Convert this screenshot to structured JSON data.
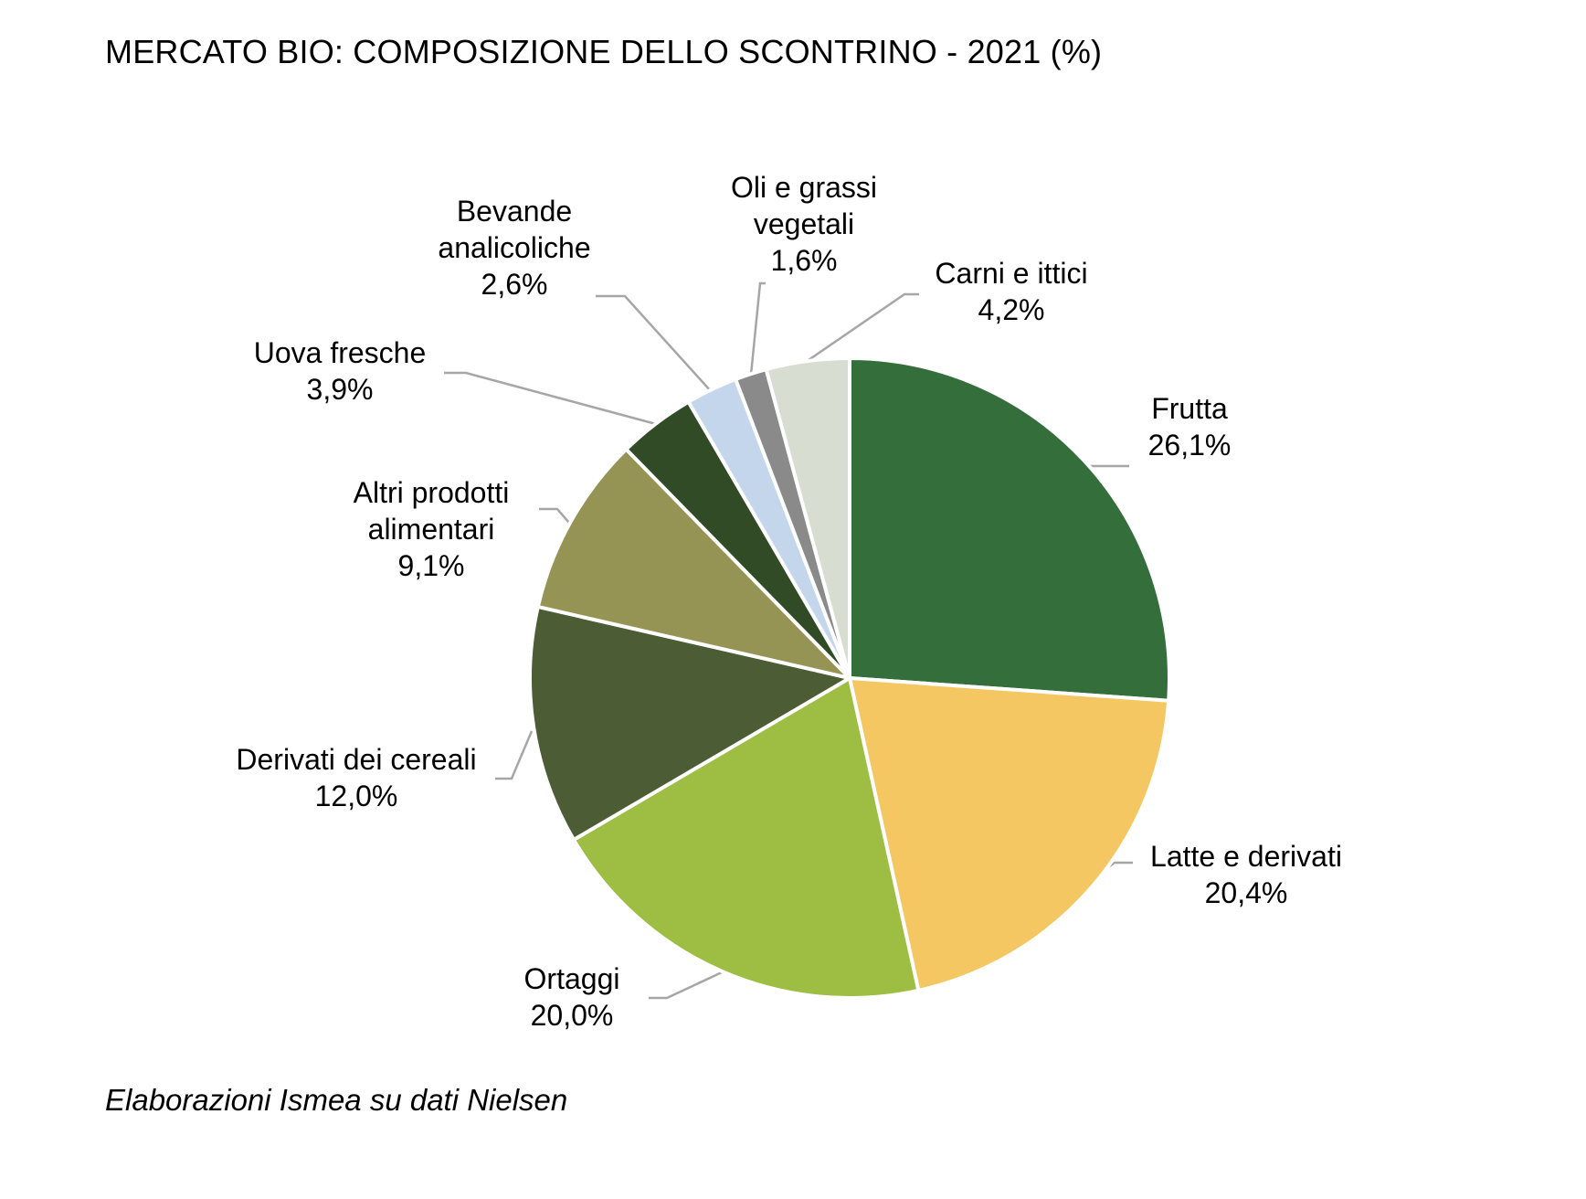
{
  "title": "MERCATO BIO: COMPOSIZIONE DELLO SCONTRINO - 2021 (%)",
  "source": "Elaborazioni Ismea su dati Nielsen",
  "chart_data": {
    "type": "pie",
    "title": "MERCATO BIO: COMPOSIZIONE DELLO SCONTRINO - 2021 (%)",
    "unit": "%",
    "start_angle_deg": 0,
    "direction": "clockwise",
    "slices": [
      {
        "label": "Frutta",
        "value": 26.1,
        "value_label": "26,1%",
        "color": "#346e3b"
      },
      {
        "label": "Latte e derivati",
        "value": 20.4,
        "value_label": "20,4%",
        "color": "#f4c762"
      },
      {
        "label": "Ortaggi",
        "value": 20.0,
        "value_label": "20,0%",
        "color": "#9dbd43"
      },
      {
        "label": "Derivati dei cereali",
        "value": 12.0,
        "value_label": "12,0%",
        "color": "#4c5c35"
      },
      {
        "label": "Altri prodotti alimentari",
        "value": 9.1,
        "value_label": "9,1%",
        "color": "#959454"
      },
      {
        "label": "Uova fresche",
        "value": 3.9,
        "value_label": "3,9%",
        "color": "#314b27"
      },
      {
        "label": "Bevande analicoliche",
        "value": 2.6,
        "value_label": "2,6%",
        "color": "#c3d6eb"
      },
      {
        "label": "Oli e grassi vegetali",
        "value": 1.6,
        "value_label": "1,6%",
        "color": "#8a8a8a"
      },
      {
        "label": "Carni e ittici",
        "value": 4.2,
        "value_label": "4,2%",
        "color": "#d7ddd0"
      }
    ]
  }
}
